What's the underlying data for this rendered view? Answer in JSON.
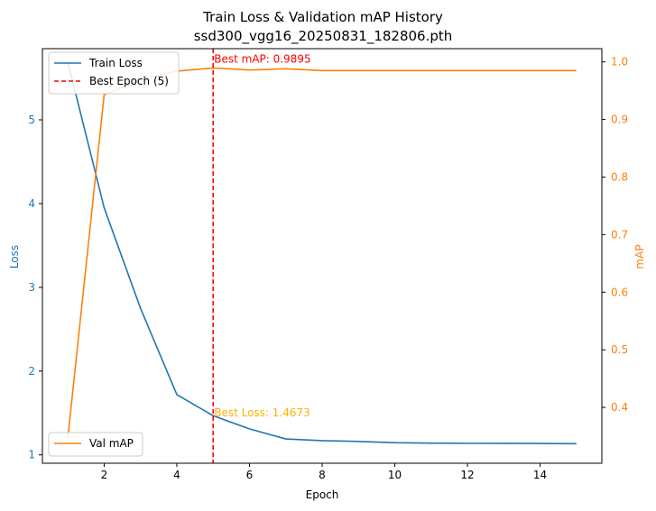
{
  "chart_data": {
    "type": "line",
    "title": "Train Loss & Validation mAP History",
    "subtitle": "ssd300_vgg16_20250831_182806.pth",
    "xlabel": "Epoch",
    "ylabel_left": "Loss",
    "ylabel_right": "mAP",
    "xlim": [
      0.3,
      15.7
    ],
    "ylim_left": [
      0.9,
      5.85
    ],
    "ylim_right": [
      0.303,
      1.023
    ],
    "x_ticks": [
      2,
      4,
      6,
      8,
      10,
      12,
      14
    ],
    "y_left_ticks": [
      1,
      2,
      3,
      4,
      5
    ],
    "y_right_ticks": [
      0.4,
      0.5,
      0.6,
      0.7,
      0.8,
      0.9,
      1.0
    ],
    "grid": false,
    "series": [
      {
        "name": "Train Loss",
        "axis": "left",
        "color": "#1f77b4",
        "x": [
          1,
          2,
          3,
          4,
          5,
          6,
          7,
          8,
          9,
          10,
          11,
          12,
          13,
          14,
          15
        ],
        "values": [
          5.69,
          3.95,
          2.75,
          1.72,
          1.4673,
          1.31,
          1.19,
          1.17,
          1.16,
          1.145,
          1.14,
          1.138,
          1.137,
          1.136,
          1.133
        ]
      },
      {
        "name": "Val mAP",
        "axis": "right",
        "color": "#ff7f0e",
        "x": [
          1,
          2,
          3,
          4,
          5,
          6,
          7,
          8,
          9,
          10,
          11,
          12,
          13,
          14,
          15
        ],
        "values": [
          0.347,
          0.943,
          0.969,
          0.984,
          0.9895,
          0.986,
          0.988,
          0.985,
          0.985,
          0.985,
          0.985,
          0.985,
          0.985,
          0.985,
          0.985
        ]
      }
    ],
    "vline": {
      "x": 5,
      "name": "Best Epoch (5)",
      "color": "#ff0000"
    },
    "annotations": [
      {
        "text": "Best mAP: 0.9895",
        "x": 5,
        "axis": "right",
        "y": 1.005,
        "color": "#ff0000"
      },
      {
        "text": "Best Loss: 1.4673",
        "x": 5,
        "axis": "left",
        "y": 1.5,
        "color": "#ffb000"
      }
    ],
    "legend_left": {
      "position": "top-left",
      "entries": [
        "Train Loss",
        "Best Epoch (5)"
      ]
    },
    "legend_right": {
      "position": "bottom-left",
      "entries": [
        "Val mAP"
      ]
    }
  }
}
